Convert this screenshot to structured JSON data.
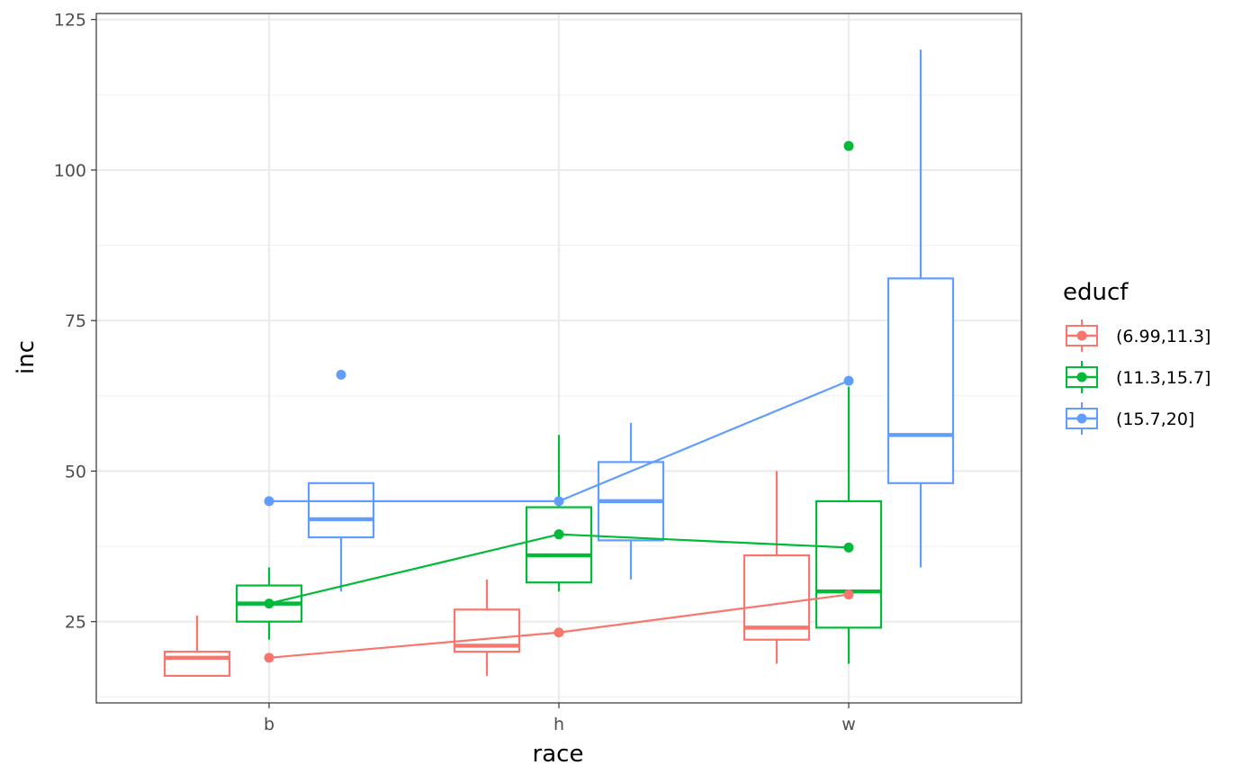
{
  "chart_data": {
    "type": "box",
    "title": "",
    "xlabel": "race",
    "ylabel": "inc",
    "categories": [
      "b",
      "h",
      "w"
    ],
    "ylim": [
      11.5,
      126
    ],
    "yticks": [
      25,
      50,
      75,
      100,
      125
    ],
    "grid": true,
    "legend": {
      "title": "educf",
      "placement": "right"
    },
    "series": [
      {
        "name": "(6.99,11.3]",
        "color": "#F8766D",
        "boxes": [
          {
            "category": "b",
            "min": 16,
            "q1": 16,
            "median": 19,
            "q3": 20,
            "max": 26,
            "outliers": []
          },
          {
            "category": "h",
            "min": 16,
            "q1": 20,
            "median": 21,
            "q3": 27,
            "max": 32,
            "outliers": []
          },
          {
            "category": "w",
            "min": 18,
            "q1": 22,
            "median": 24,
            "q3": 36,
            "max": 50,
            "outliers": []
          }
        ],
        "means": [
          19,
          23.2,
          29.5
        ]
      },
      {
        "name": "(11.3,15.7]",
        "color": "#00BA38",
        "boxes": [
          {
            "category": "b",
            "min": 22,
            "q1": 25,
            "median": 28,
            "q3": 31,
            "max": 34,
            "outliers": []
          },
          {
            "category": "h",
            "min": 30,
            "q1": 31.5,
            "median": 36,
            "q3": 44,
            "max": 56,
            "outliers": []
          },
          {
            "category": "w",
            "min": 18,
            "q1": 24,
            "median": 30,
            "q3": 45,
            "max": 64,
            "outliers": [
              104
            ]
          }
        ],
        "means": [
          28,
          39.5,
          37.3
        ]
      },
      {
        "name": "(15.7,20]",
        "color": "#619CFF",
        "boxes": [
          {
            "category": "b",
            "min": 30,
            "q1": 39,
            "median": 42,
            "q3": 48,
            "max": 48,
            "outliers": [
              66
            ]
          },
          {
            "category": "h",
            "min": 32,
            "q1": 38.5,
            "median": 45,
            "q3": 51.5,
            "max": 58,
            "outliers": []
          },
          {
            "category": "w",
            "min": 34,
            "q1": 48,
            "median": 56,
            "q3": 82,
            "max": 120,
            "outliers": []
          }
        ],
        "means": [
          45,
          45,
          65
        ]
      }
    ]
  }
}
